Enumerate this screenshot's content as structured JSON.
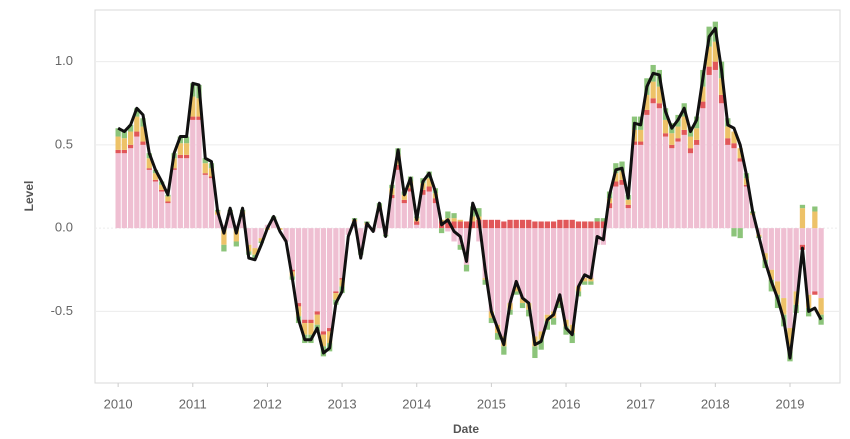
{
  "chart_data": {
    "type": "bar",
    "y_label": "Level",
    "x_label": "Date",
    "grid": true,
    "xlim": [
      2009.69,
      2019.67
    ],
    "xticks": [
      2010,
      2011,
      2012,
      2013,
      2014,
      2015,
      2016,
      2017,
      2018,
      2019
    ],
    "ylim": [
      -0.93,
      1.31
    ],
    "yticks": [
      {
        "value": -0.5,
        "label": "-0.5"
      },
      {
        "value": 0,
        "label": "0.0"
      },
      {
        "value": 0.5,
        "label": "0.5"
      },
      {
        "value": 1,
        "label": "1.0"
      }
    ],
    "x": [
      2010,
      2010.083,
      2010.167,
      2010.25,
      2010.333,
      2010.417,
      2010.5,
      2010.583,
      2010.667,
      2010.75,
      2010.833,
      2010.917,
      2011,
      2011.083,
      2011.167,
      2011.25,
      2011.333,
      2011.417,
      2011.5,
      2011.583,
      2011.667,
      2011.75,
      2011.833,
      2011.917,
      2012,
      2012.083,
      2012.167,
      2012.25,
      2012.333,
      2012.417,
      2012.5,
      2012.583,
      2012.667,
      2012.75,
      2012.833,
      2012.917,
      2013,
      2013.083,
      2013.167,
      2013.25,
      2013.333,
      2013.417,
      2013.5,
      2013.583,
      2013.667,
      2013.75,
      2013.833,
      2013.917,
      2014,
      2014.083,
      2014.167,
      2014.25,
      2014.333,
      2014.417,
      2014.5,
      2014.583,
      2014.667,
      2014.75,
      2014.833,
      2014.917,
      2015,
      2015.083,
      2015.167,
      2015.25,
      2015.333,
      2015.417,
      2015.5,
      2015.583,
      2015.667,
      2015.75,
      2015.833,
      2015.917,
      2016,
      2016.083,
      2016.167,
      2016.25,
      2016.333,
      2016.417,
      2016.5,
      2016.583,
      2016.667,
      2016.75,
      2016.833,
      2016.917,
      2017,
      2017.083,
      2017.167,
      2017.25,
      2017.333,
      2017.417,
      2017.5,
      2017.583,
      2017.667,
      2017.75,
      2017.833,
      2017.917,
      2018,
      2018.083,
      2018.167,
      2018.25,
      2018.333,
      2018.417,
      2018.5,
      2018.583,
      2018.667,
      2018.75,
      2018.833,
      2018.917,
      2019,
      2019.083,
      2019.167,
      2019.25,
      2019.333,
      2019.417
    ],
    "series": [
      {
        "color": "#efbfd2",
        "values": [
          0.45,
          0.45,
          0.48,
          0.55,
          0.5,
          0.35,
          0.28,
          0.22,
          0.15,
          0.35,
          0.42,
          0.42,
          0.65,
          0.65,
          0.32,
          0.3,
          0.08,
          0.02,
          0.08,
          0.02,
          0.08,
          -0.1,
          -0.12,
          -0.06,
          0.02,
          0.05,
          0,
          -0.08,
          -0.25,
          -0.45,
          -0.55,
          -0.55,
          -0.5,
          -0.62,
          -0.6,
          -0.38,
          -0.3,
          -0.04,
          0.04,
          -0.12,
          0.02,
          -0.02,
          0.1,
          -0.04,
          0.18,
          0.35,
          0.15,
          0.22,
          0.02,
          0.2,
          0.22,
          0.15,
          0,
          -0.02,
          -0.08,
          -0.1,
          -0.22,
          0,
          -0.08,
          -0.3,
          -0.5,
          -0.58,
          -0.65,
          -0.45,
          -0.35,
          -0.42,
          -0.45,
          -0.65,
          -0.62,
          -0.52,
          -0.5,
          -0.42,
          -0.55,
          -0.58,
          -0.35,
          -0.3,
          -0.3,
          -0.1,
          -0.1,
          0.12,
          0.25,
          0.26,
          0.12,
          0.5,
          0.5,
          0.68,
          0.75,
          0.72,
          0.55,
          0.48,
          0.52,
          0.56,
          0.45,
          0.5,
          0.72,
          0.92,
          0.95,
          0.75,
          0.5,
          0.48,
          0.4,
          0.25,
          0.08,
          -0.04,
          -0.15,
          -0.25,
          -0.32,
          -0.42,
          -0.6,
          -0.38,
          -0.1,
          -0.4,
          -0.38,
          -0.42
        ]
      },
      {
        "color": "#e15759",
        "values": [
          0.02,
          0.02,
          0.02,
          0.03,
          0.02,
          0.01,
          0.01,
          0.01,
          0.01,
          0.01,
          0.02,
          0.02,
          0.02,
          0.02,
          0.01,
          0.01,
          0,
          0,
          0,
          0,
          0,
          0,
          0,
          0,
          0,
          0,
          0,
          0,
          -0.01,
          -0.02,
          -0.02,
          -0.02,
          -0.02,
          -0.02,
          -0.02,
          -0.01,
          -0.01,
          0,
          0,
          0,
          0,
          0,
          0.01,
          0.01,
          0.02,
          0.03,
          0.02,
          0.02,
          0.02,
          0.03,
          0.03,
          0.03,
          0.04,
          0.04,
          0.04,
          0.04,
          0.04,
          0.04,
          0.05,
          0.05,
          0.05,
          0.05,
          0.04,
          0.05,
          0.05,
          0.05,
          0.05,
          0.04,
          0.04,
          0.04,
          0.04,
          0.05,
          0.05,
          0.05,
          0.04,
          0.04,
          0.04,
          0.04,
          0.04,
          0.03,
          0.03,
          0.03,
          0.02,
          0.02,
          0.02,
          0.03,
          0.03,
          0.03,
          0.02,
          0.02,
          0.02,
          0.03,
          0.03,
          0.03,
          0.04,
          0.05,
          0.05,
          0.05,
          0.04,
          0.03,
          0.02,
          0.01,
          0,
          0,
          0,
          0,
          0,
          0,
          0,
          0,
          -0.03,
          0,
          -0.02,
          0
        ]
      },
      {
        "color": "#edc268",
        "values": [
          0.08,
          0.07,
          0.08,
          0.09,
          0.09,
          0.06,
          0.04,
          0.03,
          0.03,
          0.06,
          0.07,
          0.07,
          0.12,
          0.11,
          0.06,
          0.05,
          0.02,
          -0.1,
          0.02,
          -0.08,
          0.02,
          -0.04,
          -0.04,
          -0.02,
          -0.01,
          0.01,
          -0.01,
          0,
          -0.03,
          -0.06,
          -0.07,
          -0.07,
          -0.06,
          -0.07,
          -0.07,
          -0.04,
          -0.04,
          0,
          0.01,
          -0.02,
          0.01,
          0,
          0.02,
          0,
          0.04,
          0.06,
          0.03,
          0.04,
          0.02,
          0.04,
          0.05,
          0.03,
          0.01,
          0.02,
          0.02,
          0.01,
          0,
          0.03,
          0.02,
          -0.01,
          -0.04,
          -0.05,
          -0.06,
          -0.04,
          -0.03,
          -0.03,
          -0.04,
          -0.06,
          -0.05,
          -0.04,
          -0.04,
          -0.03,
          -0.04,
          -0.05,
          -0.03,
          -0.02,
          -0.02,
          0,
          0,
          0.03,
          0.05,
          0.05,
          0.03,
          0.07,
          0.07,
          0.09,
          0.1,
          0.1,
          0.08,
          0.07,
          0.07,
          0.08,
          0.07,
          0.07,
          0.09,
          0.12,
          0.12,
          0.1,
          0.07,
          0.07,
          0.06,
          0.04,
          0.01,
          -0.01,
          -0.04,
          -0.06,
          -0.08,
          -0.1,
          -0.14,
          -0.08,
          0.12,
          -0.08,
          0.1,
          -0.1
        ]
      },
      {
        "color": "#8cc47a",
        "values": [
          0.05,
          0.04,
          0.04,
          0.05,
          0.05,
          0.03,
          0.02,
          0.02,
          0.01,
          0.03,
          0.04,
          0.04,
          0.08,
          0.08,
          0.03,
          0.03,
          0.01,
          -0.04,
          0.01,
          -0.03,
          0.01,
          -0.02,
          -0.02,
          -0.01,
          0,
          0.01,
          0,
          0,
          -0.02,
          -0.04,
          -0.05,
          -0.05,
          -0.04,
          -0.06,
          -0.05,
          -0.03,
          -0.04,
          0,
          0.01,
          -0.02,
          0.01,
          0,
          0.02,
          -0.01,
          0.02,
          0.04,
          0.02,
          0.03,
          0.01,
          0.03,
          0.04,
          0.03,
          -0.03,
          0.04,
          0.03,
          -0.03,
          -0.04,
          0.06,
          0.05,
          -0.03,
          -0.03,
          -0.04,
          -0.05,
          -0.03,
          -0.02,
          -0.03,
          -0.04,
          -0.07,
          -0.06,
          -0.05,
          -0.04,
          -0.03,
          -0.05,
          -0.06,
          -0.03,
          -0.02,
          -0.02,
          0.02,
          0.02,
          0.04,
          0.06,
          0.06,
          0.03,
          0.08,
          0.08,
          0.1,
          0.1,
          0.1,
          0.07,
          0.06,
          0.07,
          0.08,
          0.06,
          0.07,
          0.1,
          0.12,
          0.12,
          0.1,
          0.05,
          -0.05,
          -0.06,
          0.03,
          0.01,
          -0.01,
          -0.05,
          -0.07,
          -0.08,
          -0.07,
          -0.06,
          -0.05,
          0.02,
          -0.05,
          0.03,
          -0.06
        ]
      },
      {
        "color": "#111111",
        "type": "line",
        "values": [
          0.6,
          0.58,
          0.62,
          0.72,
          0.68,
          0.45,
          0.35,
          0.28,
          0.2,
          0.45,
          0.55,
          0.55,
          0.87,
          0.86,
          0.42,
          0.4,
          0.1,
          -0.03,
          0.12,
          -0.03,
          0.12,
          -0.18,
          -0.19,
          -0.1,
          0,
          0.07,
          -0.02,
          -0.08,
          -0.3,
          -0.55,
          -0.67,
          -0.67,
          -0.6,
          -0.75,
          -0.72,
          -0.45,
          -0.38,
          -0.05,
          0.05,
          -0.18,
          0.03,
          -0.02,
          0.15,
          -0.05,
          0.25,
          0.47,
          0.2,
          0.3,
          0.05,
          0.28,
          0.33,
          0.22,
          0.02,
          0.05,
          -0.02,
          -0.05,
          -0.2,
          0.15,
          0.05,
          -0.25,
          -0.5,
          -0.6,
          -0.7,
          -0.45,
          -0.32,
          -0.42,
          -0.45,
          -0.7,
          -0.68,
          -0.55,
          -0.52,
          -0.4,
          -0.6,
          -0.64,
          -0.35,
          -0.28,
          -0.3,
          -0.05,
          -0.07,
          0.2,
          0.35,
          0.36,
          0.18,
          0.63,
          0.62,
          0.85,
          0.93,
          0.92,
          0.7,
          0.6,
          0.65,
          0.72,
          0.58,
          0.65,
          0.9,
          1.15,
          1.2,
          0.95,
          0.62,
          0.6,
          0.5,
          0.32,
          0.1,
          -0.05,
          -0.2,
          -0.32,
          -0.42,
          -0.55,
          -0.78,
          -0.48,
          -0.12,
          -0.5,
          -0.48,
          -0.55
        ]
      }
    ]
  }
}
